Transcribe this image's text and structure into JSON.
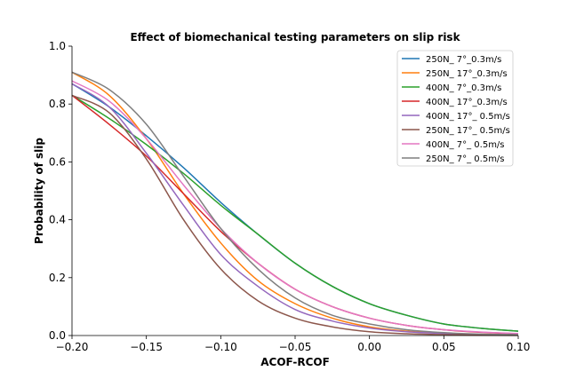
{
  "chart_data": {
    "type": "line",
    "title": "Effect of biomechanical testing parameters on slip risk",
    "xlabel": "ACOF-RCOF",
    "ylabel": "Probability of slip",
    "xlim": [
      -0.2,
      0.1
    ],
    "ylim": [
      0.0,
      1.0
    ],
    "xticks": [
      -0.2,
      -0.15,
      -0.1,
      -0.05,
      0.0,
      0.05,
      0.1
    ],
    "xtick_labels": [
      "−0.20",
      "−0.15",
      "−0.10",
      "−0.05",
      "0.00",
      "0.05",
      "0.10"
    ],
    "yticks": [
      0.0,
      0.2,
      0.4,
      0.6,
      0.8,
      1.0
    ],
    "ytick_labels": [
      "0.0",
      "0.2",
      "0.4",
      "0.6",
      "0.8",
      "1.0"
    ],
    "grid": false,
    "legend_position": "top-right",
    "x": [
      -0.2,
      -0.175,
      -0.15,
      -0.125,
      -0.1,
      -0.075,
      -0.05,
      -0.025,
      0.0,
      0.025,
      0.05,
      0.075,
      0.1
    ],
    "series": [
      {
        "name": "250N_ 7°_0.3m/s",
        "color": "#1f77b4",
        "values": [
          0.87,
          0.79,
          0.69,
          0.58,
          0.46,
          0.35,
          0.25,
          0.17,
          0.11,
          0.07,
          0.04,
          0.025,
          0.015
        ]
      },
      {
        "name": "250N_ 17°_0.3m/s",
        "color": "#ff7f0e",
        "values": [
          0.91,
          0.83,
          0.68,
          0.49,
          0.32,
          0.19,
          0.11,
          0.06,
          0.03,
          0.015,
          0.008,
          0.004,
          0.002
        ]
      },
      {
        "name": "400N_ 7°_0.3m/s",
        "color": "#2ca02c",
        "values": [
          0.83,
          0.75,
          0.66,
          0.56,
          0.45,
          0.35,
          0.25,
          0.17,
          0.11,
          0.07,
          0.04,
          0.025,
          0.015
        ]
      },
      {
        "name": "400N_ 17°_0.3m/s",
        "color": "#d62728",
        "values": [
          0.83,
          0.73,
          0.62,
          0.49,
          0.36,
          0.25,
          0.16,
          0.1,
          0.06,
          0.035,
          0.02,
          0.011,
          0.006
        ]
      },
      {
        "name": "400N_ 17°_ 0.5m/s",
        "color": "#9467bd",
        "values": [
          0.87,
          0.79,
          0.63,
          0.45,
          0.28,
          0.17,
          0.09,
          0.05,
          0.026,
          0.013,
          0.007,
          0.003,
          0.002
        ]
      },
      {
        "name": "250N_ 17°_ 0.5m/s",
        "color": "#8c564b",
        "values": [
          0.83,
          0.77,
          0.61,
          0.4,
          0.23,
          0.12,
          0.06,
          0.03,
          0.013,
          0.006,
          0.003,
          0.001,
          0.0005
        ]
      },
      {
        "name": "400N_ 7°_ 0.5m/s",
        "color": "#e377c2",
        "values": [
          0.88,
          0.81,
          0.68,
          0.52,
          0.37,
          0.25,
          0.16,
          0.1,
          0.06,
          0.035,
          0.02,
          0.012,
          0.007
        ]
      },
      {
        "name": "250N_ 7°_ 0.5m/s",
        "color": "#7f7f7f",
        "values": [
          0.91,
          0.85,
          0.73,
          0.55,
          0.37,
          0.23,
          0.13,
          0.07,
          0.04,
          0.02,
          0.01,
          0.005,
          0.003
        ]
      }
    ]
  }
}
